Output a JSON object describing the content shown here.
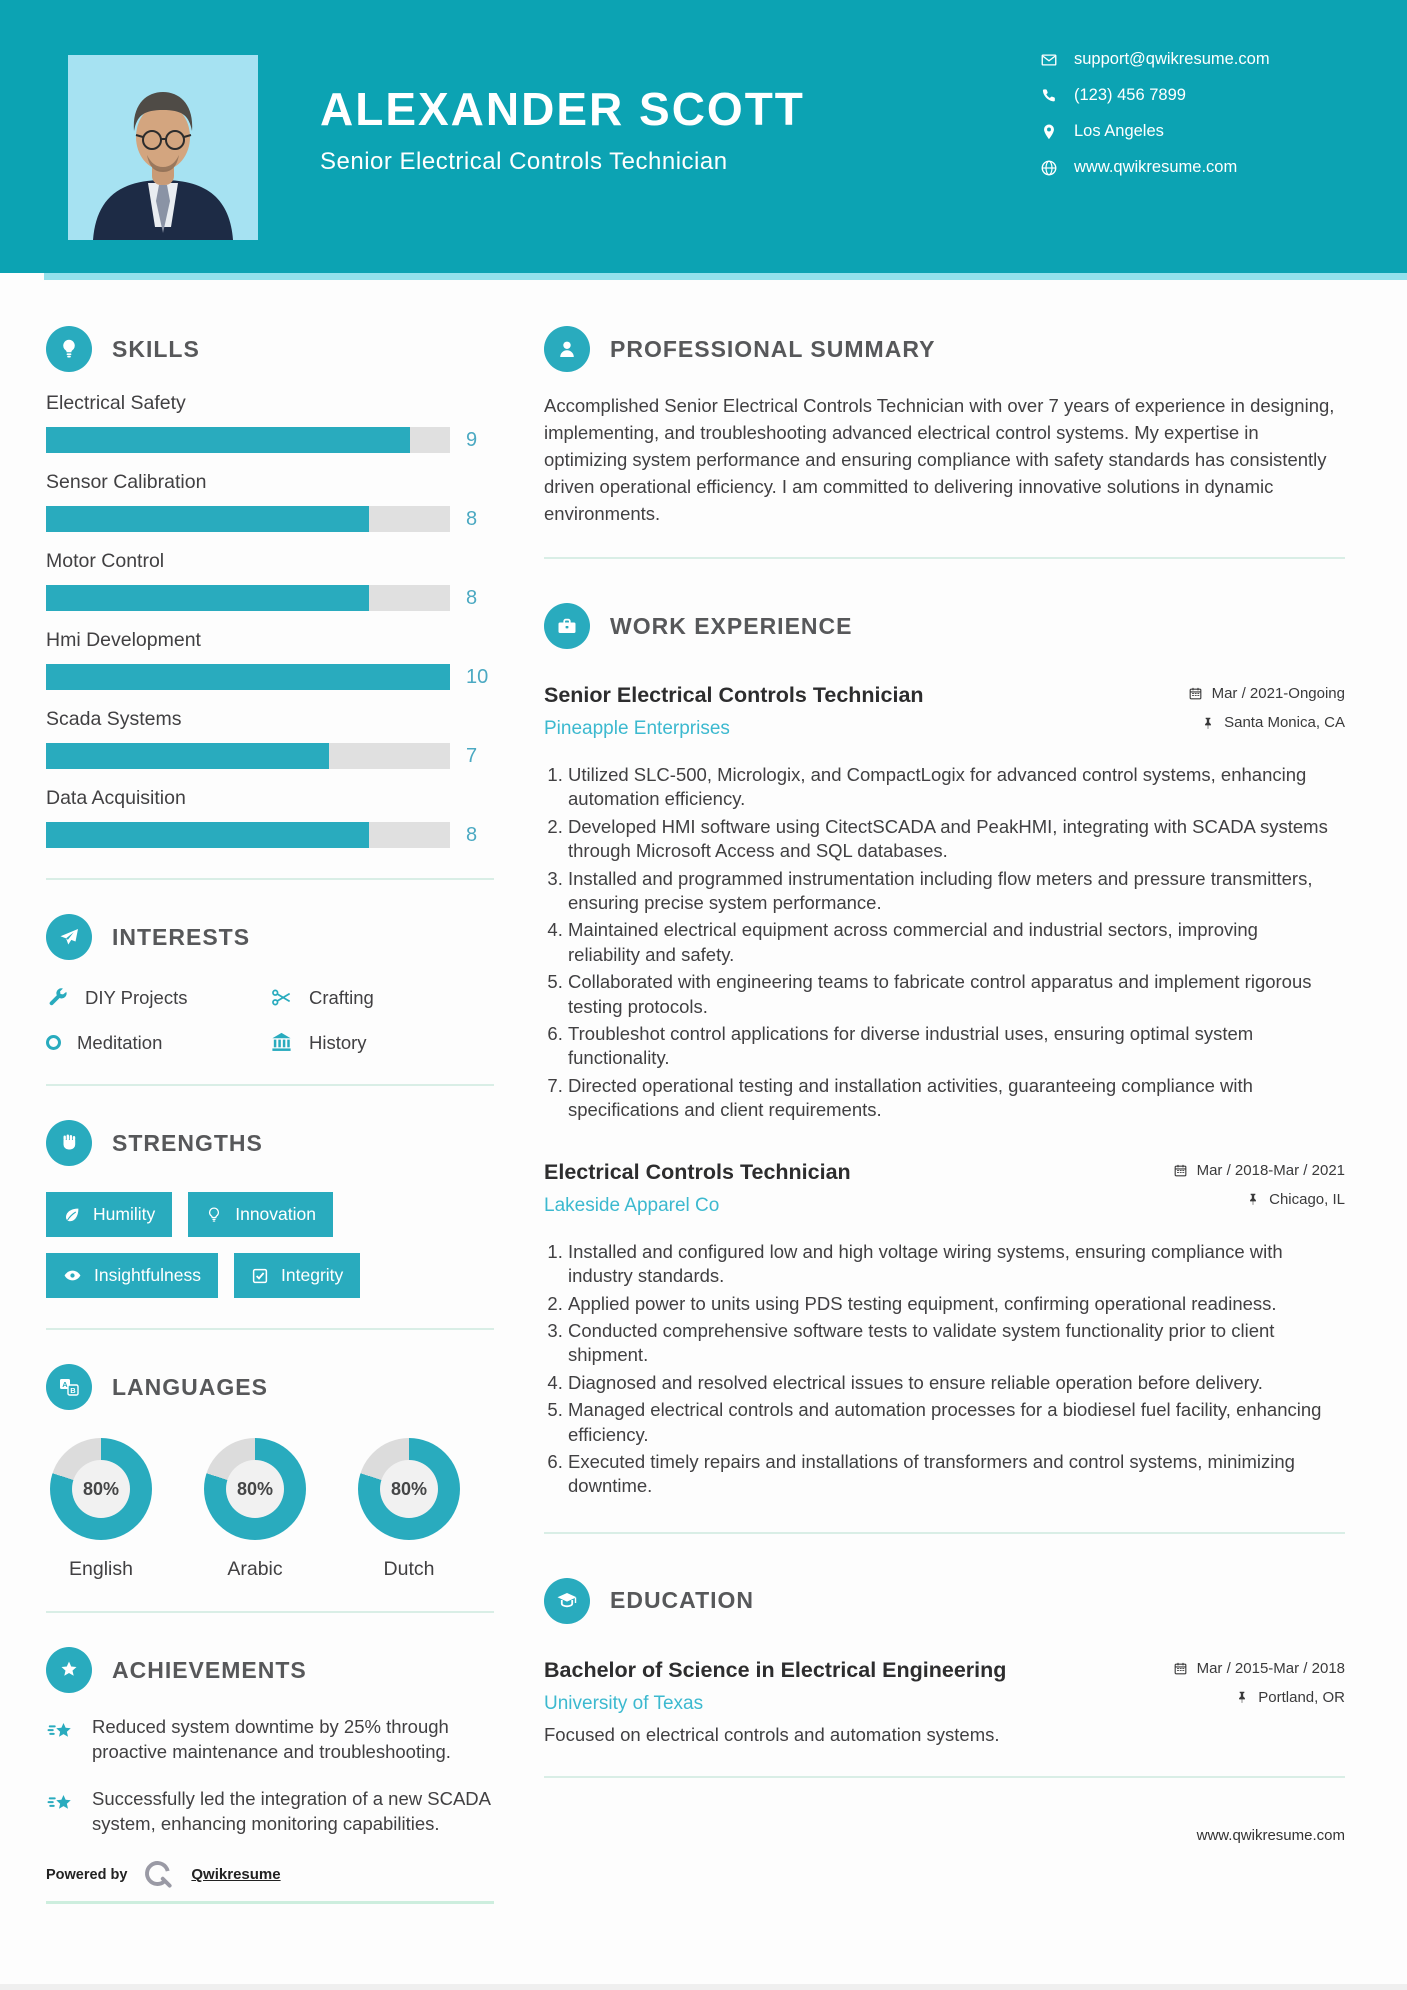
{
  "colors": {
    "header_bg": "#0ca3b3",
    "accent": "#29abbe",
    "photo_bg": "#a6e2f2",
    "divider": "#d9eee6",
    "company_text": "#3cb9cf",
    "skill_number": "#4ba9c2"
  },
  "header": {
    "name": "ALEXANDER SCOTT",
    "title": "Senior Electrical Controls Technician",
    "contacts": [
      {
        "icon": "envelope-icon",
        "text": "support@qwikresume.com"
      },
      {
        "icon": "phone-icon",
        "text": "(123) 456 7899"
      },
      {
        "icon": "pin-icon",
        "text": "Los Angeles"
      },
      {
        "icon": "globe-icon",
        "text": "www.qwikresume.com"
      }
    ]
  },
  "skills": {
    "title": "SKILLS",
    "max": 10,
    "items": [
      {
        "label": "Electrical Safety",
        "value": 9
      },
      {
        "label": "Sensor Calibration",
        "value": 8
      },
      {
        "label": "Motor Control",
        "value": 8
      },
      {
        "label": "Hmi Development",
        "value": 10
      },
      {
        "label": "Scada Systems",
        "value": 7
      },
      {
        "label": "Data Acquisition",
        "value": 8
      }
    ]
  },
  "interests": {
    "title": "INTERESTS",
    "items": [
      {
        "icon": "wrench-icon",
        "label": "DIY Projects"
      },
      {
        "icon": "scissors-icon",
        "label": "Crafting"
      },
      {
        "icon": "circle-icon",
        "label": "Meditation"
      },
      {
        "icon": "museum-icon",
        "label": "History"
      }
    ]
  },
  "strengths": {
    "title": "STRENGTHS",
    "items": [
      {
        "icon": "leaf-icon",
        "label": "Humility"
      },
      {
        "icon": "bulb-icon",
        "label": "Innovation"
      },
      {
        "icon": "eye-icon",
        "label": "Insightfulness"
      },
      {
        "icon": "checkbox-icon",
        "label": "Integrity"
      }
    ]
  },
  "languages": {
    "title": "LANGUAGES",
    "items": [
      {
        "label": "English",
        "percent": 80,
        "display": "80%"
      },
      {
        "label": "Arabic",
        "percent": 80,
        "display": "80%"
      },
      {
        "label": "Dutch",
        "percent": 80,
        "display": "80%"
      }
    ]
  },
  "achievements": {
    "title": "ACHIEVEMENTS",
    "items": [
      "Reduced system downtime by 25% through proactive maintenance and troubleshooting.",
      "Successfully led the integration of a new SCADA system, enhancing monitoring capabilities."
    ]
  },
  "summary": {
    "title": "PROFESSIONAL SUMMARY",
    "text": "Accomplished Senior Electrical Controls Technician with over 7 years of experience in designing, implementing, and troubleshooting advanced electrical control systems. My expertise in optimizing system performance and ensuring compliance with safety standards has consistently driven operational efficiency. I am committed to delivering innovative solutions in dynamic environments."
  },
  "experience": {
    "title": "WORK EXPERIENCE",
    "jobs": [
      {
        "role": "Senior Electrical Controls Technician",
        "company": "Pineapple Enterprises",
        "dates": "Mar / 2021-Ongoing",
        "location": "Santa Monica, CA",
        "bullets": [
          "Utilized SLC-500, Micrologix, and CompactLogix for advanced control systems, enhancing automation efficiency.",
          "Developed HMI software using CitectSCADA and PeakHMI, integrating with SCADA systems through Microsoft Access and SQL databases.",
          "Installed and programmed instrumentation including flow meters and pressure transmitters, ensuring precise system performance.",
          "Maintained electrical equipment across commercial and industrial sectors, improving reliability and safety.",
          "Collaborated with engineering teams to fabricate control apparatus and implement rigorous testing protocols.",
          "Troubleshot control applications for diverse industrial uses, ensuring optimal system functionality.",
          "Directed operational testing and installation activities, guaranteeing compliance with specifications and client requirements."
        ]
      },
      {
        "role": "Electrical Controls Technician",
        "company": "Lakeside Apparel Co",
        "dates": "Mar / 2018-Mar / 2021",
        "location": "Chicago, IL",
        "bullets": [
          "Installed and configured low and high voltage wiring systems, ensuring compliance with industry standards.",
          "Applied power to units using PDS testing equipment, confirming operational readiness.",
          "Conducted comprehensive software tests to validate system functionality prior to client shipment.",
          "Diagnosed and resolved electrical issues to ensure reliable operation before delivery.",
          "Managed electrical controls and automation processes for a biodiesel fuel facility, enhancing efficiency.",
          "Executed timely repairs and installations of transformers and control systems, minimizing downtime."
        ]
      }
    ]
  },
  "education": {
    "title": "EDUCATION",
    "degree": "Bachelor of Science in Electrical Engineering",
    "school": "University of Texas",
    "dates": "Mar / 2015-Mar / 2018",
    "location": "Portland, OR",
    "note": "Focused on electrical controls and automation systems."
  },
  "footer": {
    "powered_by": "Powered by",
    "brand": "Qwikresume",
    "site": "www.qwikresume.com"
  }
}
